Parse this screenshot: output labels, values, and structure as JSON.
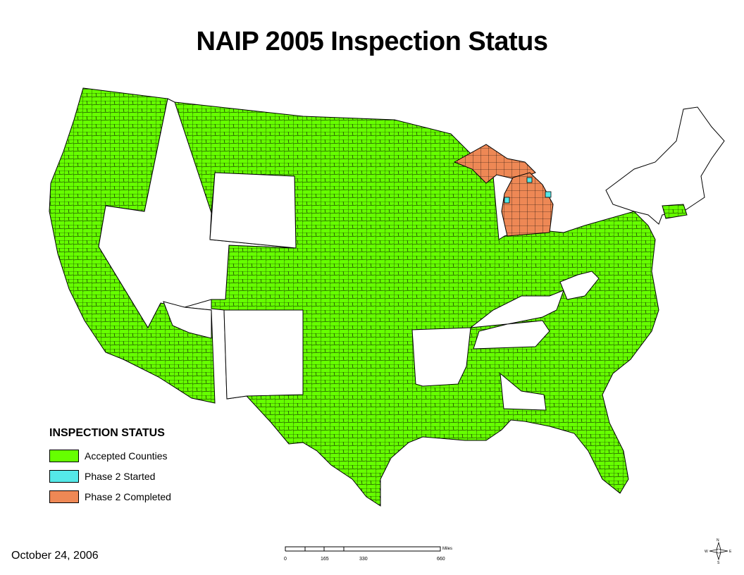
{
  "title": "NAIP 2005 Inspection Status",
  "legend": {
    "heading": "INSPECTION STATUS",
    "items": [
      {
        "label": "Accepted Counties",
        "color": "#66ff00"
      },
      {
        "label": "Phase 2 Started",
        "color": "#55e8e8"
      },
      {
        "label": "Phase 2 Completed",
        "color": "#ee8855"
      }
    ]
  },
  "date": "October 24, 2006",
  "scale_bar": {
    "ticks": [
      "0",
      "165",
      "330",
      "660"
    ],
    "unit": "Miles"
  },
  "compass": {
    "n": "N",
    "s": "S",
    "e": "E",
    "w": "W"
  },
  "colors": {
    "accepted": "#66ff00",
    "phase2_started": "#55e8e8",
    "phase2_completed": "#ee8855",
    "not_inspected": "#ffffff",
    "border": "#000000"
  }
}
